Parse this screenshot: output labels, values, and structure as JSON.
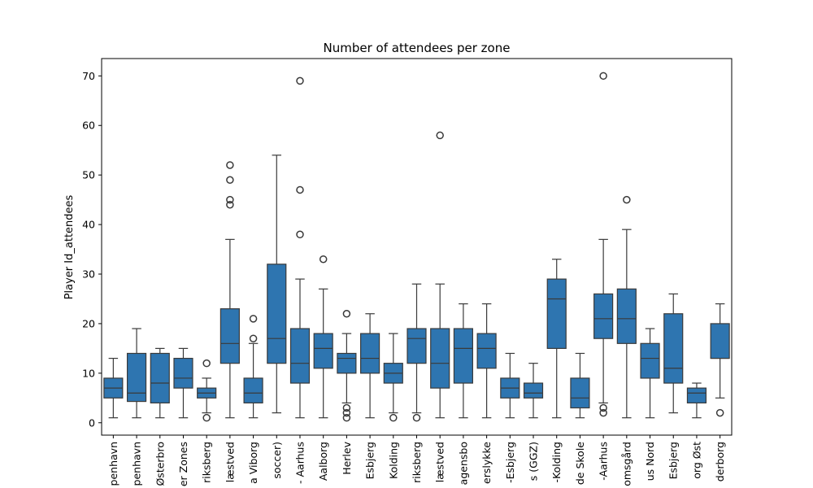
{
  "chart_data": {
    "type": "box",
    "title": "Number of attendees per zone",
    "xlabel": "",
    "ylabel": "Player Id_attendees",
    "ylim": [
      -2.5,
      73.5
    ],
    "yticks": [
      0,
      10,
      20,
      30,
      40,
      50,
      60,
      70
    ],
    "grid": false,
    "legend": "none",
    "box_color": "#2e75b0",
    "categories": [
      "penhavn",
      "penhavn",
      "Østerbro",
      "er Zones",
      "riksberg",
      "læstved",
      "a Viborg",
      "soccer)",
      "- Aarhus",
      "Aalborg",
      "Herlev",
      "Esbjerg",
      "Kolding",
      "riksberg",
      "læstved",
      "agensbo",
      "erslykke",
      "-Esbjerg",
      "s (GGZ)",
      "-Kolding",
      "de Skole",
      "-Aarhus",
      "omsgård",
      "us Nord",
      "Esbjerg",
      "org Øst",
      "derborg"
    ],
    "boxes": [
      {
        "whislo": 1,
        "q1": 5,
        "med": 7,
        "q3": 9,
        "whishi": 13,
        "fliers": []
      },
      {
        "whislo": 1,
        "q1": 4.3,
        "med": 6,
        "q3": 14,
        "whishi": 19,
        "fliers": []
      },
      {
        "whislo": 1,
        "q1": 4,
        "med": 8,
        "q3": 14,
        "whishi": 15,
        "fliers": []
      },
      {
        "whislo": 1,
        "q1": 7,
        "med": 9,
        "q3": 13,
        "whishi": 15,
        "fliers": []
      },
      {
        "whislo": 2,
        "q1": 5,
        "med": 6,
        "q3": 7,
        "whishi": 9,
        "fliers": [
          1,
          12
        ]
      },
      {
        "whislo": 1,
        "q1": 12,
        "med": 16,
        "q3": 23,
        "whishi": 37,
        "fliers": [
          44,
          45,
          49,
          52
        ]
      },
      {
        "whislo": 1,
        "q1": 4,
        "med": 6,
        "q3": 9,
        "whishi": 16,
        "fliers": [
          17,
          21
        ]
      },
      {
        "whislo": 2,
        "q1": 12,
        "med": 17,
        "q3": 32,
        "whishi": 54,
        "fliers": []
      },
      {
        "whislo": 1,
        "q1": 8,
        "med": 12,
        "q3": 19,
        "whishi": 29,
        "fliers": [
          38,
          47,
          69
        ]
      },
      {
        "whislo": 1,
        "q1": 11,
        "med": 15,
        "q3": 18,
        "whishi": 27,
        "fliers": [
          33
        ]
      },
      {
        "whislo": 4,
        "q1": 10,
        "med": 13,
        "q3": 14,
        "whishi": 18,
        "fliers": [
          1,
          2,
          3,
          22
        ]
      },
      {
        "whislo": 1,
        "q1": 10,
        "med": 13,
        "q3": 18,
        "whishi": 22,
        "fliers": []
      },
      {
        "whislo": 2,
        "q1": 8,
        "med": 10,
        "q3": 12,
        "whishi": 18,
        "fliers": [
          1
        ]
      },
      {
        "whislo": 2,
        "q1": 12,
        "med": 17,
        "q3": 19,
        "whishi": 28,
        "fliers": [
          1
        ]
      },
      {
        "whislo": 1,
        "q1": 7,
        "med": 12,
        "q3": 19,
        "whishi": 28,
        "fliers": [
          58
        ]
      },
      {
        "whislo": 1,
        "q1": 8,
        "med": 15,
        "q3": 19,
        "whishi": 24,
        "fliers": []
      },
      {
        "whislo": 1,
        "q1": 11,
        "med": 15,
        "q3": 18,
        "whishi": 24,
        "fliers": []
      },
      {
        "whislo": 1,
        "q1": 5,
        "med": 7,
        "q3": 9,
        "whishi": 14,
        "fliers": []
      },
      {
        "whislo": 1,
        "q1": 5,
        "med": 6,
        "q3": 8,
        "whishi": 12,
        "fliers": []
      },
      {
        "whislo": 1,
        "q1": 15,
        "med": 25,
        "q3": 29,
        "whishi": 33,
        "fliers": []
      },
      {
        "whislo": 1,
        "q1": 3,
        "med": 5,
        "q3": 9,
        "whishi": 14,
        "fliers": []
      },
      {
        "whislo": 4,
        "q1": 17,
        "med": 21,
        "q3": 26,
        "whishi": 37,
        "fliers": [
          2,
          3,
          70
        ]
      },
      {
        "whislo": 1,
        "q1": 16,
        "med": 21,
        "q3": 27,
        "whishi": 39,
        "fliers": [
          45
        ]
      },
      {
        "whislo": 1,
        "q1": 9,
        "med": 13,
        "q3": 16,
        "whishi": 19,
        "fliers": []
      },
      {
        "whislo": 2,
        "q1": 8,
        "med": 11,
        "q3": 22,
        "whishi": 26,
        "fliers": []
      },
      {
        "whislo": 1,
        "q1": 4,
        "med": 6,
        "q3": 7,
        "whishi": 8,
        "fliers": []
      },
      {
        "whislo": 5,
        "q1": 13,
        "med": 13,
        "q3": 20,
        "whishi": 24,
        "fliers": [
          2
        ]
      }
    ]
  }
}
